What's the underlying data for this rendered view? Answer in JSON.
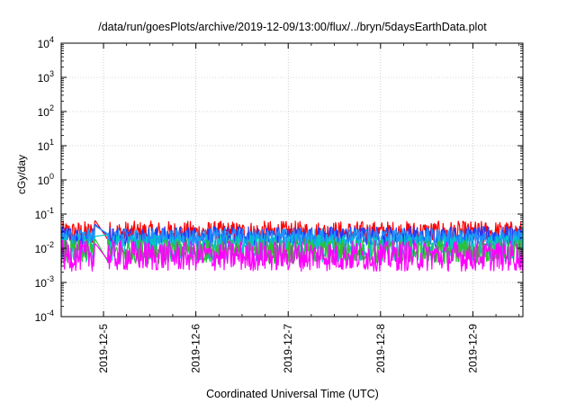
{
  "chart_data": {
    "type": "line",
    "title": "/data/run/goesPlots/archive/2019-12-09/13:00/flux/../bryn/5daysEarthData.plot",
    "xlabel": "Coordinated Universal Time (UTC)",
    "ylabel": "cGy/day",
    "y_scale": "log",
    "ylim": [
      0.0001,
      10000
    ],
    "y_ticks": [
      {
        "base": "10",
        "exp": "4"
      },
      {
        "base": "10",
        "exp": "3"
      },
      {
        "base": "10",
        "exp": "2"
      },
      {
        "base": "10",
        "exp": "1"
      },
      {
        "base": "10",
        "exp": "0"
      },
      {
        "base": "10",
        "exp": "-1"
      },
      {
        "base": "10",
        "exp": "-2"
      },
      {
        "base": "10",
        "exp": "-3"
      },
      {
        "base": "10",
        "exp": "-4"
      }
    ],
    "x_tick_labels": [
      "2019-12-5",
      "2019-12-6",
      "2019-12-7",
      "2019-12-8",
      "2019-12-9"
    ],
    "xlim": [
      "2019-12-04 13:00",
      "2019-12-09 13:00"
    ],
    "gap": {
      "start": "2019-12-04 22:00",
      "end": "2019-12-05 01:00"
    },
    "grid": true,
    "series": [
      {
        "color": "#ff0000",
        "typical_value": 0.028,
        "spread": 0.35
      },
      {
        "color": "#1e3cff",
        "typical_value": 0.022,
        "spread": 0.3
      },
      {
        "color": "#1e90ff",
        "typical_value": 0.02,
        "spread": 0.28
      },
      {
        "color": "#00c8c8",
        "typical_value": 0.01,
        "spread": 0.4
      },
      {
        "color": "#30c030",
        "typical_value": 0.008,
        "spread": 0.35
      },
      {
        "color": "#ff00ff",
        "typical_value": 0.006,
        "spread": 0.45
      }
    ]
  }
}
